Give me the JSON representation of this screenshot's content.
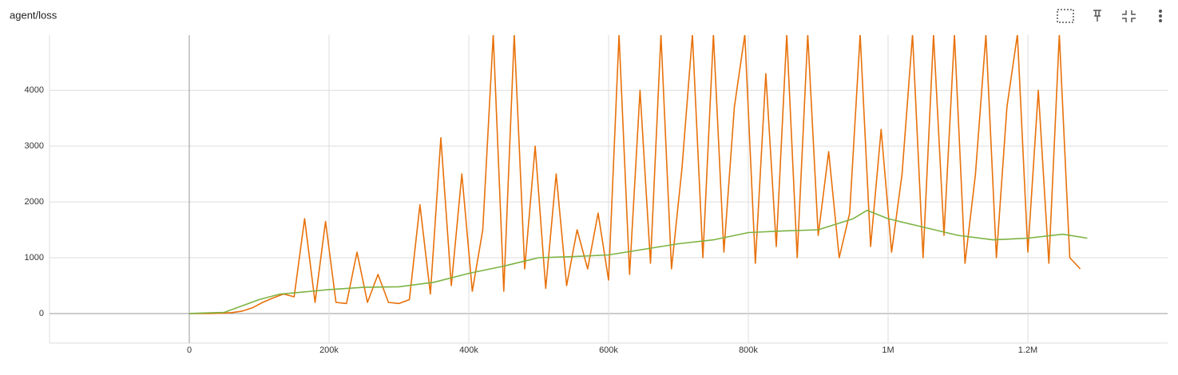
{
  "chart_data": {
    "type": "line",
    "title": "agent/loss",
    "xlim": [
      -200000,
      1400000
    ],
    "ylim": [
      -530,
      4990
    ],
    "xticks": [
      0,
      {
        "value": 200000,
        "label": "200k"
      },
      {
        "value": 400000,
        "label": "400k"
      },
      {
        "value": 600000,
        "label": "600k"
      },
      {
        "value": 800000,
        "label": "800k"
      },
      {
        "value": 1000000,
        "label": "1M"
      },
      {
        "value": 1200000,
        "label": "1.2M"
      }
    ],
    "yticks": [
      0,
      1000,
      2000,
      3000,
      4000
    ],
    "grid": true,
    "series": [
      {
        "color": "#e8710a",
        "x": [
          0,
          15000,
          30000,
          45000,
          60000,
          75000,
          90000,
          105000,
          120000,
          135000,
          150000,
          165000,
          180000,
          195000,
          210000,
          225000,
          240000,
          255000,
          270000,
          285000,
          300000,
          315000,
          330000,
          345000,
          360000,
          375000,
          390000,
          405000,
          420000,
          435000,
          450000,
          465000,
          480000,
          495000,
          510000,
          525000,
          540000,
          555000,
          570000,
          585000,
          600000,
          615000,
          630000,
          645000,
          660000,
          675000,
          690000,
          705000,
          720000,
          735000,
          750000,
          765000,
          780000,
          795000,
          810000,
          825000,
          840000,
          855000,
          870000,
          885000,
          900000,
          915000,
          930000,
          945000,
          960000,
          975000,
          990000,
          1005000,
          1020000,
          1035000,
          1050000,
          1065000,
          1080000,
          1095000,
          1110000,
          1125000,
          1140000,
          1155000,
          1170000,
          1185000,
          1200000,
          1215000,
          1230000,
          1245000,
          1260000,
          1275000
        ],
        "values": [
          0,
          0,
          0,
          5,
          15,
          40,
          100,
          200,
          280,
          350,
          300,
          1700,
          200,
          1650,
          200,
          180,
          1100,
          200,
          700,
          200,
          180,
          250,
          1950,
          350,
          3150,
          500,
          2500,
          400,
          1500,
          5000,
          400,
          5000,
          800,
          3000,
          450,
          2500,
          500,
          1500,
          800,
          1800,
          600,
          5000,
          700,
          4000,
          900,
          5000,
          800,
          2600,
          5000,
          1000,
          5000,
          1100,
          3700,
          5000,
          900,
          4300,
          1200,
          5000,
          1000,
          5000,
          1400,
          2900,
          1000,
          1800,
          5000,
          1200,
          3300,
          1100,
          2500,
          5000,
          1000,
          5000,
          1400,
          5000,
          900,
          2500,
          5000,
          1000,
          3700,
          5000,
          1100,
          4000,
          900,
          5000,
          1000,
          800
        ]
      },
      {
        "color": "#7cb342",
        "x": [
          0,
          50000,
          100000,
          130000,
          150000,
          200000,
          250000,
          300000,
          350000,
          400000,
          450000,
          500000,
          550000,
          600000,
          650000,
          700000,
          750000,
          800000,
          850000,
          900000,
          950000,
          970000,
          1000000,
          1050000,
          1100000,
          1150000,
          1200000,
          1250000,
          1285000
        ],
        "values": [
          0,
          20,
          250,
          350,
          370,
          430,
          470,
          480,
          560,
          720,
          850,
          1000,
          1020,
          1050,
          1150,
          1250,
          1320,
          1450,
          1480,
          1500,
          1700,
          1850,
          1700,
          1550,
          1400,
          1320,
          1350,
          1420,
          1350
        ]
      }
    ]
  }
}
